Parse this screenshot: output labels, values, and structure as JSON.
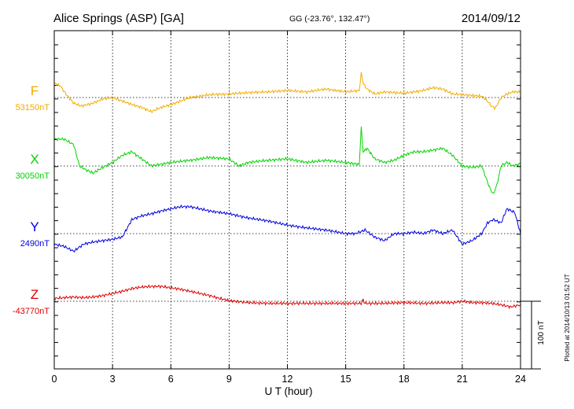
{
  "header": {
    "station": "Alice Springs (ASP)  [GA]",
    "coords": "GG (-23.76°, 132.47°)",
    "date": "2014/09/12"
  },
  "chart_data": {
    "type": "line",
    "xlabel": "U T (hour)",
    "xlim": [
      0,
      24
    ],
    "xticks": [
      "0",
      "3",
      "6",
      "9",
      "12",
      "15",
      "18",
      "21",
      "24"
    ],
    "scale_bar_nT": 100,
    "scale_label": "100 nT",
    "plotted_note": "Plotted at 2014/10/13 01:52 UT",
    "series": [
      {
        "name": "F",
        "baseline_label": "53150nT",
        "color": "#f0ad00",
        "x": [
          0,
          0.3,
          0.6,
          1,
          1.4,
          2,
          2.5,
          3,
          3.5,
          4,
          4.5,
          5,
          5.5,
          6,
          6.5,
          7,
          7.5,
          8,
          9,
          10,
          11,
          12,
          13,
          14,
          15,
          15.7,
          15.8,
          15.9,
          16.1,
          16.5,
          17,
          18,
          19,
          19.5,
          20,
          20.5,
          21,
          21.5,
          22,
          22.3,
          22.5,
          22.7,
          23,
          23.3,
          23.6,
          24
        ],
        "values": [
          20,
          17,
          5,
          -8,
          -12,
          -8,
          -2,
          0,
          -5,
          -10,
          -14,
          -20,
          -14,
          -10,
          -5,
          0,
          2,
          4,
          5,
          7,
          8,
          10,
          8,
          12,
          8,
          10,
          35,
          20,
          12,
          5,
          8,
          6,
          10,
          14,
          12,
          5,
          4,
          3,
          2,
          -5,
          -12,
          -15,
          0,
          5,
          8,
          8
        ]
      },
      {
        "name": "X",
        "baseline_label": "30050nT",
        "color": "#00d400",
        "x": [
          0,
          0.5,
          1,
          1.3,
          1.6,
          2,
          2.5,
          3,
          3.5,
          4,
          4.5,
          5,
          6,
          7,
          8,
          9,
          9.5,
          10,
          11,
          12,
          13,
          14,
          15,
          15.7,
          15.8,
          15.9,
          16.1,
          16.5,
          17,
          17.5,
          18,
          18.5,
          19,
          20,
          20.5,
          21,
          21.5,
          22,
          22.4,
          22.6,
          22.8,
          23,
          23.3,
          23.6,
          24
        ],
        "values": [
          38,
          38,
          30,
          0,
          -5,
          -10,
          -2,
          5,
          15,
          20,
          10,
          0,
          5,
          8,
          12,
          10,
          0,
          5,
          8,
          10,
          5,
          8,
          5,
          2,
          55,
          20,
          25,
          10,
          5,
          8,
          15,
          20,
          20,
          25,
          15,
          0,
          -2,
          0,
          -30,
          -40,
          -25,
          0,
          5,
          0,
          3
        ]
      },
      {
        "name": "Y",
        "baseline_label": "2490nT",
        "color": "#0000dd",
        "x": [
          0,
          0.5,
          1,
          1.5,
          2,
          2.5,
          3,
          3.5,
          4,
          4.5,
          5,
          5.5,
          6,
          6.5,
          7,
          7.5,
          8,
          9,
          10,
          11,
          12,
          13,
          14,
          15,
          15.5,
          16,
          16.5,
          17,
          17.5,
          18,
          18.5,
          19,
          19.5,
          20,
          20.5,
          21,
          21.5,
          22,
          22.3,
          22.6,
          23,
          23.3,
          23.7,
          24
        ],
        "values": [
          -15,
          -18,
          -25,
          -15,
          -12,
          -10,
          -8,
          -5,
          20,
          25,
          28,
          32,
          35,
          38,
          38,
          35,
          32,
          28,
          22,
          18,
          12,
          8,
          5,
          0,
          0,
          5,
          -5,
          -10,
          0,
          0,
          2,
          0,
          5,
          0,
          5,
          -15,
          -10,
          0,
          15,
          20,
          15,
          35,
          30,
          0
        ]
      },
      {
        "name": "Z",
        "baseline_label": "-43770nT",
        "color": "#dd0000",
        "x": [
          0,
          0.5,
          1,
          1.5,
          2,
          2.5,
          3,
          3.5,
          4,
          4.5,
          5,
          5.5,
          6,
          6.5,
          7,
          7.5,
          8,
          8.5,
          9,
          10,
          11,
          12,
          13,
          14,
          15,
          15.8,
          15.9,
          16,
          16.5,
          17,
          18,
          19,
          20,
          20.5,
          21,
          21.5,
          22,
          22.5,
          23,
          23.5,
          24
        ],
        "values": [
          4,
          5,
          6,
          5,
          6,
          8,
          11,
          14,
          18,
          20,
          21,
          21,
          19,
          17,
          14,
          11,
          8,
          4,
          1,
          -2,
          -3,
          -3,
          -3,
          -3,
          -3,
          -3,
          2,
          -3,
          -3,
          -3,
          -2,
          -3,
          -2,
          -2,
          0,
          -2,
          -2,
          -3,
          -5,
          -8,
          -5
        ]
      }
    ]
  }
}
